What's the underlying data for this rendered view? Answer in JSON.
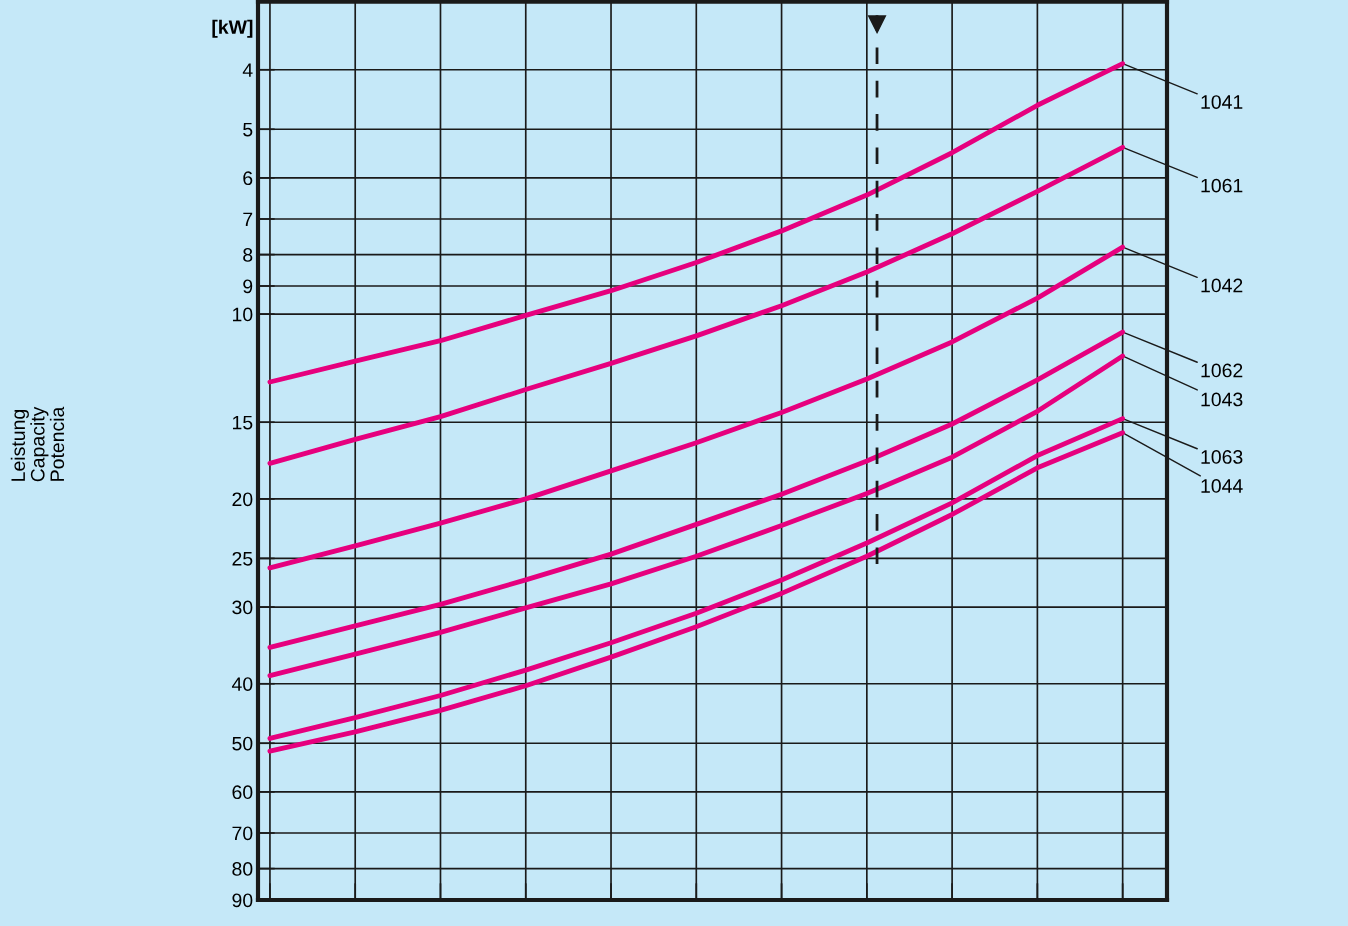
{
  "chart_data": {
    "type": "line",
    "annotations": [
      "[kW]",
      "Leistung\nCapacity\nPotencia"
    ],
    "categories": [
      null,
      null,
      null,
      null,
      null,
      null,
      null,
      null,
      null,
      null,
      null
    ],
    "series": [
      {
        "name": "1041",
        "color": "#e6007e",
        "values": [
          12.9,
          11.93,
          11.05,
          10.05,
          9.16,
          8.24,
          7.32,
          6.4,
          5.46,
          4.57,
          3.91
        ]
      },
      {
        "name": "1061",
        "color": "#e6007e",
        "values": [
          17.5,
          16.0,
          14.69,
          13.27,
          12.03,
          10.85,
          9.69,
          8.54,
          7.4,
          6.31,
          5.35
        ]
      },
      {
        "name": "1042",
        "color": "#e6007e",
        "values": [
          25.9,
          23.85,
          21.9,
          20.0,
          18.0,
          16.2,
          14.46,
          12.76,
          11.1,
          9.42,
          7.78
        ]
      },
      {
        "name": "1062",
        "color": "#e6007e",
        "values": [
          34.9,
          32.2,
          29.7,
          27.1,
          24.6,
          22.0,
          19.65,
          17.35,
          15.1,
          12.8,
          10.7
        ]
      },
      {
        "name": "1043",
        "color": "#e6007e",
        "values": [
          38.8,
          35.8,
          33.0,
          30.1,
          27.5,
          24.8,
          22.1,
          19.6,
          17.1,
          14.4,
          11.7
        ]
      },
      {
        "name": "1063",
        "color": "#e6007e",
        "values": [
          49.1,
          45.4,
          41.8,
          38.0,
          34.3,
          30.7,
          27.1,
          23.6,
          20.3,
          17.0,
          14.8
        ]
      },
      {
        "name": "1044",
        "color": "#e6007e",
        "values": [
          51.5,
          47.9,
          44.2,
          40.3,
          36.2,
          32.3,
          28.5,
          24.8,
          21.2,
          17.8,
          15.6
        ]
      }
    ],
    "ylim": [
      90,
      3.1
    ],
    "yticks": [
      4,
      5,
      6,
      7,
      8,
      9,
      10,
      15,
      20,
      25,
      30,
      40,
      50,
      60,
      70,
      80,
      90
    ],
    "log": "y",
    "grid": true,
    "tick_labels": "y",
    "marker": "none",
    "line_style": "solid"
  }
}
